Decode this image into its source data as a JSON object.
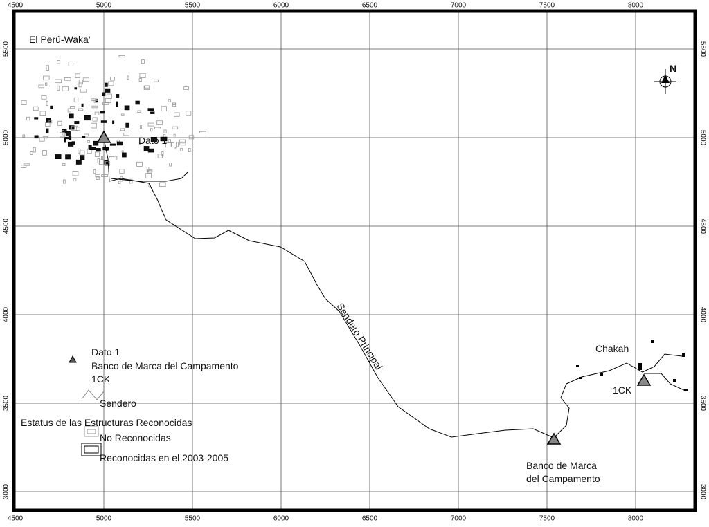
{
  "grid": {
    "eastings": [
      4500,
      5000,
      5500,
      6000,
      6500,
      7000,
      7500,
      8000
    ],
    "northings": [
      3000,
      3500,
      4000,
      4500,
      5000,
      5500
    ]
  },
  "labels": {
    "site": "El Perú-Waka'",
    "datum": "Dato 1",
    "trail": "Sendero Principal",
    "chakah": "Chakah",
    "ck": "1CK",
    "camp_benchmark": [
      "Banco de Marca",
      "del Campamento"
    ]
  },
  "north": "N",
  "legend": {
    "points": [
      "Dato 1",
      "Banco de Marca del Campamento",
      "1CK"
    ],
    "trail": "Sendero",
    "status_title": "Estatus de las Estructuras Reconocidas",
    "unrecognized": "No Reconocidas",
    "recognized": "Reconocidas en el 2003-2005"
  }
}
